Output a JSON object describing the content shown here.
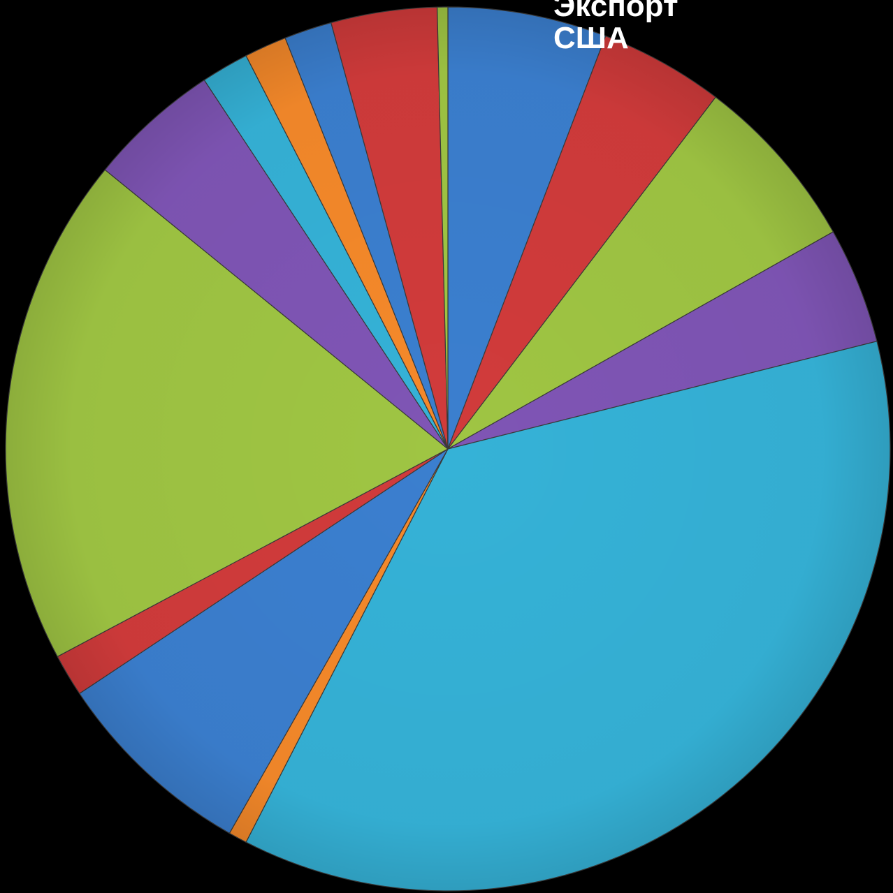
{
  "chart_data": {
    "type": "pie",
    "title": [
      "Экспорт",
      "США"
    ],
    "start_angle_deg": 0,
    "direction": "clockwise",
    "slices": [
      {
        "value": 6.0,
        "color": "#3b7fcf"
      },
      {
        "value": 4.7,
        "color": "#d13b3b"
      },
      {
        "value": 6.7,
        "color": "#9fc543"
      },
      {
        "value": 4.4,
        "color": "#7f55b5"
      },
      {
        "value": 37.7,
        "color": "#35b2d7"
      },
      {
        "value": 0.7,
        "color": "#f5892a"
      },
      {
        "value": 7.7,
        "color": "#3b7fcf"
      },
      {
        "value": 1.6,
        "color": "#d13b3b"
      },
      {
        "value": 19.3,
        "color": "#9fc543"
      },
      {
        "value": 5.0,
        "color": "#7f55b5"
      },
      {
        "value": 1.8,
        "color": "#35b2d7"
      },
      {
        "value": 1.6,
        "color": "#f5892a"
      },
      {
        "value": 1.8,
        "color": "#3b7fcf"
      },
      {
        "value": 4.0,
        "color": "#d13b3b"
      },
      {
        "value": 0.4,
        "color": "#9fc543"
      }
    ]
  }
}
